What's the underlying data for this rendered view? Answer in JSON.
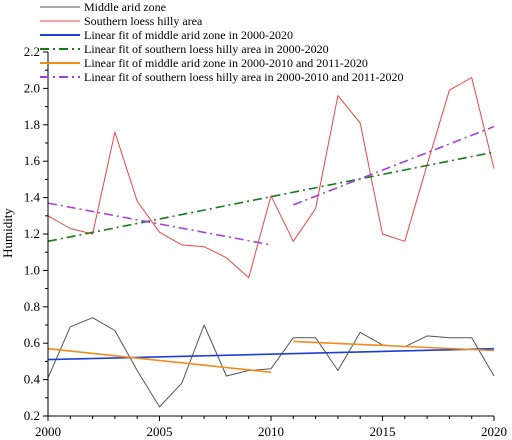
{
  "chart_data": {
    "type": "line",
    "title": "",
    "xlabel": "",
    "ylabel": "Humidity",
    "xlim": [
      2000,
      2020
    ],
    "ylim": [
      0.2,
      2.2
    ],
    "xticks": [
      2000,
      2005,
      2010,
      2015,
      2020
    ],
    "yticks": [
      0.2,
      0.4,
      0.6,
      0.8,
      1.0,
      1.2,
      1.4,
      1.6,
      1.8,
      2.0,
      2.2
    ],
    "grid": false,
    "legend_position": "top-left",
    "series": [
      {
        "name": "Middle arid zone",
        "color": "#555555",
        "style": "solid",
        "x": [
          2000,
          2001,
          2002,
          2003,
          2004,
          2005,
          2006,
          2007,
          2008,
          2009,
          2010,
          2011,
          2012,
          2013,
          2014,
          2015,
          2016,
          2017,
          2018,
          2019,
          2020
        ],
        "y": [
          0.41,
          0.69,
          0.74,
          0.67,
          0.45,
          0.25,
          0.38,
          0.7,
          0.42,
          0.45,
          0.46,
          0.63,
          0.63,
          0.45,
          0.66,
          0.59,
          0.58,
          0.64,
          0.63,
          0.63,
          0.42
        ]
      },
      {
        "name": "Southern loess hilly area",
        "color": "#f04444",
        "style": "solid",
        "x": [
          2000,
          2001,
          2002,
          2003,
          2004,
          2005,
          2006,
          2007,
          2008,
          2009,
          2010,
          2011,
          2012,
          2013,
          2014,
          2015,
          2016,
          2017,
          2018,
          2019,
          2020
        ],
        "y": [
          1.3,
          1.23,
          1.2,
          1.76,
          1.38,
          1.21,
          1.14,
          1.13,
          1.07,
          0.96,
          1.41,
          1.16,
          1.34,
          1.96,
          1.81,
          1.2,
          1.16,
          1.58,
          1.99,
          2.06,
          1.56
        ]
      },
      {
        "name": "Linear fit of middle arid zone in 2000-2020",
        "color": "#1f3fd6",
        "style": "solid",
        "fit": true,
        "x": [
          2000,
          2020
        ],
        "y": [
          0.51,
          0.57
        ]
      },
      {
        "name": "Linear fit of southern loess hilly area in 2000-2020",
        "color": "#1a7a1a",
        "style": "dashdot",
        "fit": true,
        "x": [
          2000,
          2020
        ],
        "y": [
          1.16,
          1.65
        ]
      },
      {
        "name": "Linear fit of middle arid zone in 2000-2010 and 2011-2020",
        "color": "#f08c1a",
        "style": "solid",
        "fit": true,
        "segments": [
          {
            "x": [
              2000,
              2010
            ],
            "y": [
              0.57,
              0.44
            ]
          },
          {
            "x": [
              2011,
              2020
            ],
            "y": [
              0.61,
              0.56
            ]
          }
        ]
      },
      {
        "name": "Linear fit of southern loess hilly area in 2000-2010 and 2011-2020",
        "color": "#a040e0",
        "style": "dashdot",
        "fit": true,
        "segments": [
          {
            "x": [
              2000,
              2010
            ],
            "y": [
              1.37,
              1.14
            ]
          },
          {
            "x": [
              2011,
              2020
            ],
            "y": [
              1.36,
              1.79
            ]
          }
        ]
      }
    ]
  }
}
